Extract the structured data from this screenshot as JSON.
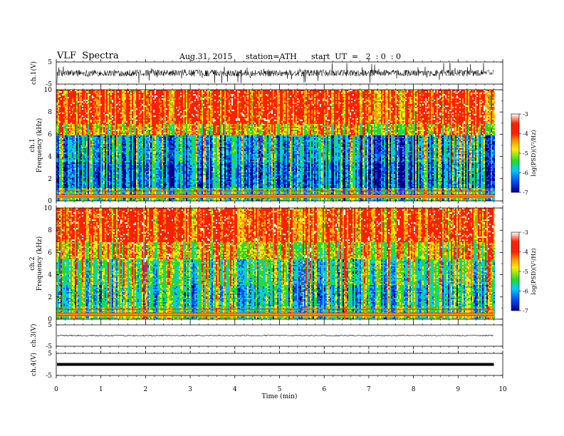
{
  "header": {
    "title": "VLF  Spectra",
    "date": "Aug.31, 2015",
    "station": "station=ATH",
    "start": "start  UT  =   2  : 0  : 0"
  },
  "chart_data": [
    {
      "type": "line",
      "name": "waveform-ch1",
      "ylabel": "ch.1(V)",
      "ylim": [
        -5,
        5
      ],
      "yticks": [
        "5",
        "-5"
      ],
      "description_values": {
        "baseline": 0,
        "typical_amplitude": 1.5
      }
    },
    {
      "type": "heatmap",
      "name": "spectrogram-ch1",
      "ylabel": "ch.1\nFrequency (kHz)",
      "ylabel_line1": "ch.1",
      "ylabel_line2": "Frequency  (kHz)",
      "ylim": [
        0,
        10
      ],
      "yticks": [
        "0",
        "2",
        "4",
        "6",
        "8",
        "10"
      ],
      "colorbar": {
        "label": "log(PSD)(V²/Hz)",
        "range": [
          -7,
          -3
        ],
        "ticks": [
          "-3",
          "-4",
          "-5",
          "-6",
          "-7"
        ]
      }
    },
    {
      "type": "heatmap",
      "name": "spectrogram-ch2",
      "ylabel_line1": "ch.2",
      "ylabel_line2": "Frequency  (kHz)",
      "ylim": [
        0,
        10
      ],
      "yticks": [
        "0",
        "2",
        "4",
        "6",
        "8",
        "10"
      ],
      "colorbar": {
        "label": "log(PSD)(V²/Hz)",
        "range": [
          -7,
          -3
        ],
        "ticks": [
          "-3",
          "-4",
          "-5",
          "-6",
          "-7"
        ]
      }
    },
    {
      "type": "line",
      "name": "waveform-ch3",
      "ylabel": "ch.3(V)",
      "ylim": [
        -5,
        5
      ],
      "yticks": [
        "5",
        "-5"
      ]
    },
    {
      "type": "line",
      "name": "waveform-ch4",
      "ylabel": "ch.4(V)",
      "ylim": [
        -5,
        5
      ],
      "yticks": [
        "5",
        "-5"
      ]
    }
  ],
  "xaxis": {
    "label": "Time  (min)",
    "range": [
      0,
      10
    ],
    "ticks": [
      "0",
      "1",
      "2",
      "3",
      "4",
      "5",
      "6",
      "7",
      "8",
      "9",
      "10"
    ],
    "data_end": 9.8
  },
  "colors": {
    "red": "#ff2000",
    "orange": "#ff9900",
    "yellow": "#ffee00",
    "green": "#22dd22",
    "cyan": "#00ccff",
    "blue": "#0055ff",
    "navy": "#000088"
  }
}
